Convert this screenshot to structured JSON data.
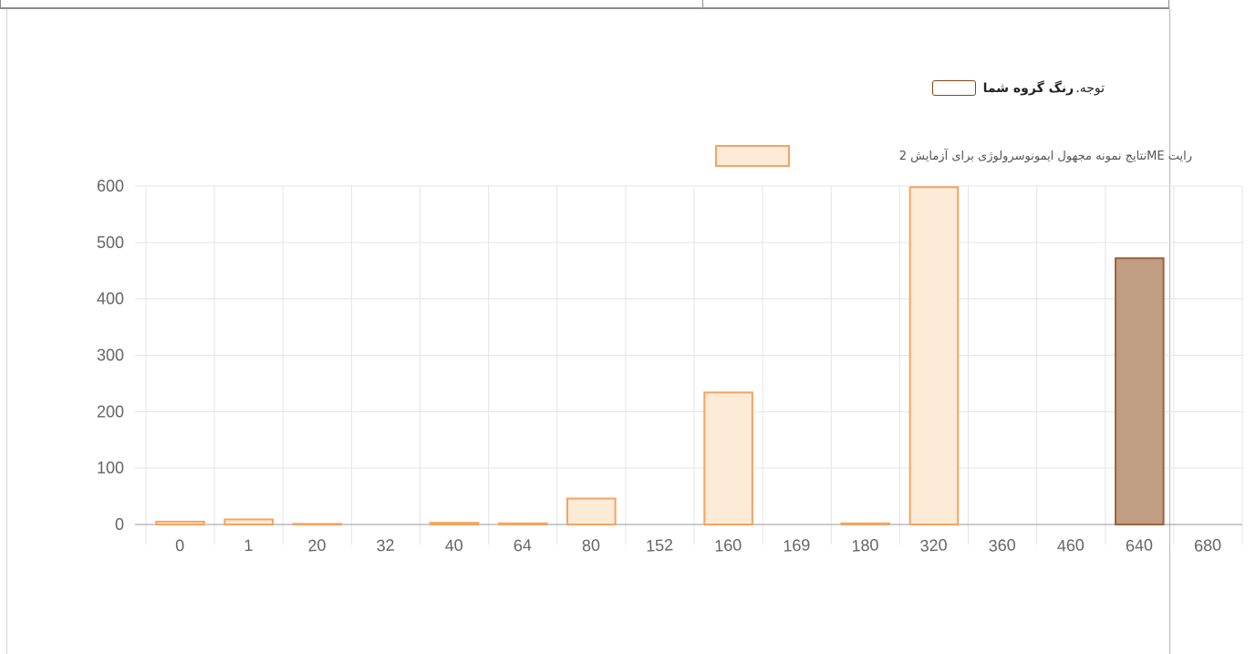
{
  "note": {
    "prefix": "توجه.",
    "strong": "رنگ گروه شما",
    "swatch_color": "#8b4513"
  },
  "chart_data": {
    "type": "bar",
    "legend": "نتایج نمونه مجهول ایمونوسرولوژی برای آزمایش 2ME رایت",
    "legend_position": "top-right",
    "grid": true,
    "ylim": [
      0,
      600
    ],
    "yticks": [
      0,
      100,
      200,
      300,
      400,
      500,
      600
    ],
    "categories": [
      "0",
      "1",
      "20",
      "32",
      "40",
      "64",
      "80",
      "152",
      "160",
      "169",
      "180",
      "320",
      "360",
      "460",
      "640",
      "680"
    ],
    "series": [
      {
        "name": "نتایج نمونه مجهول ایمونوسرولوژی برای آزمایش 2ME رایت",
        "values": [
          5,
          9,
          1,
          0,
          3,
          2,
          46,
          0,
          234,
          0,
          2,
          598,
          0,
          0,
          472,
          0
        ],
        "fill": "#fdebd7",
        "stroke": "#f4a460"
      }
    ],
    "highlight": {
      "category": "640",
      "fill": "#bf9e83",
      "stroke": "#a0623a"
    }
  }
}
